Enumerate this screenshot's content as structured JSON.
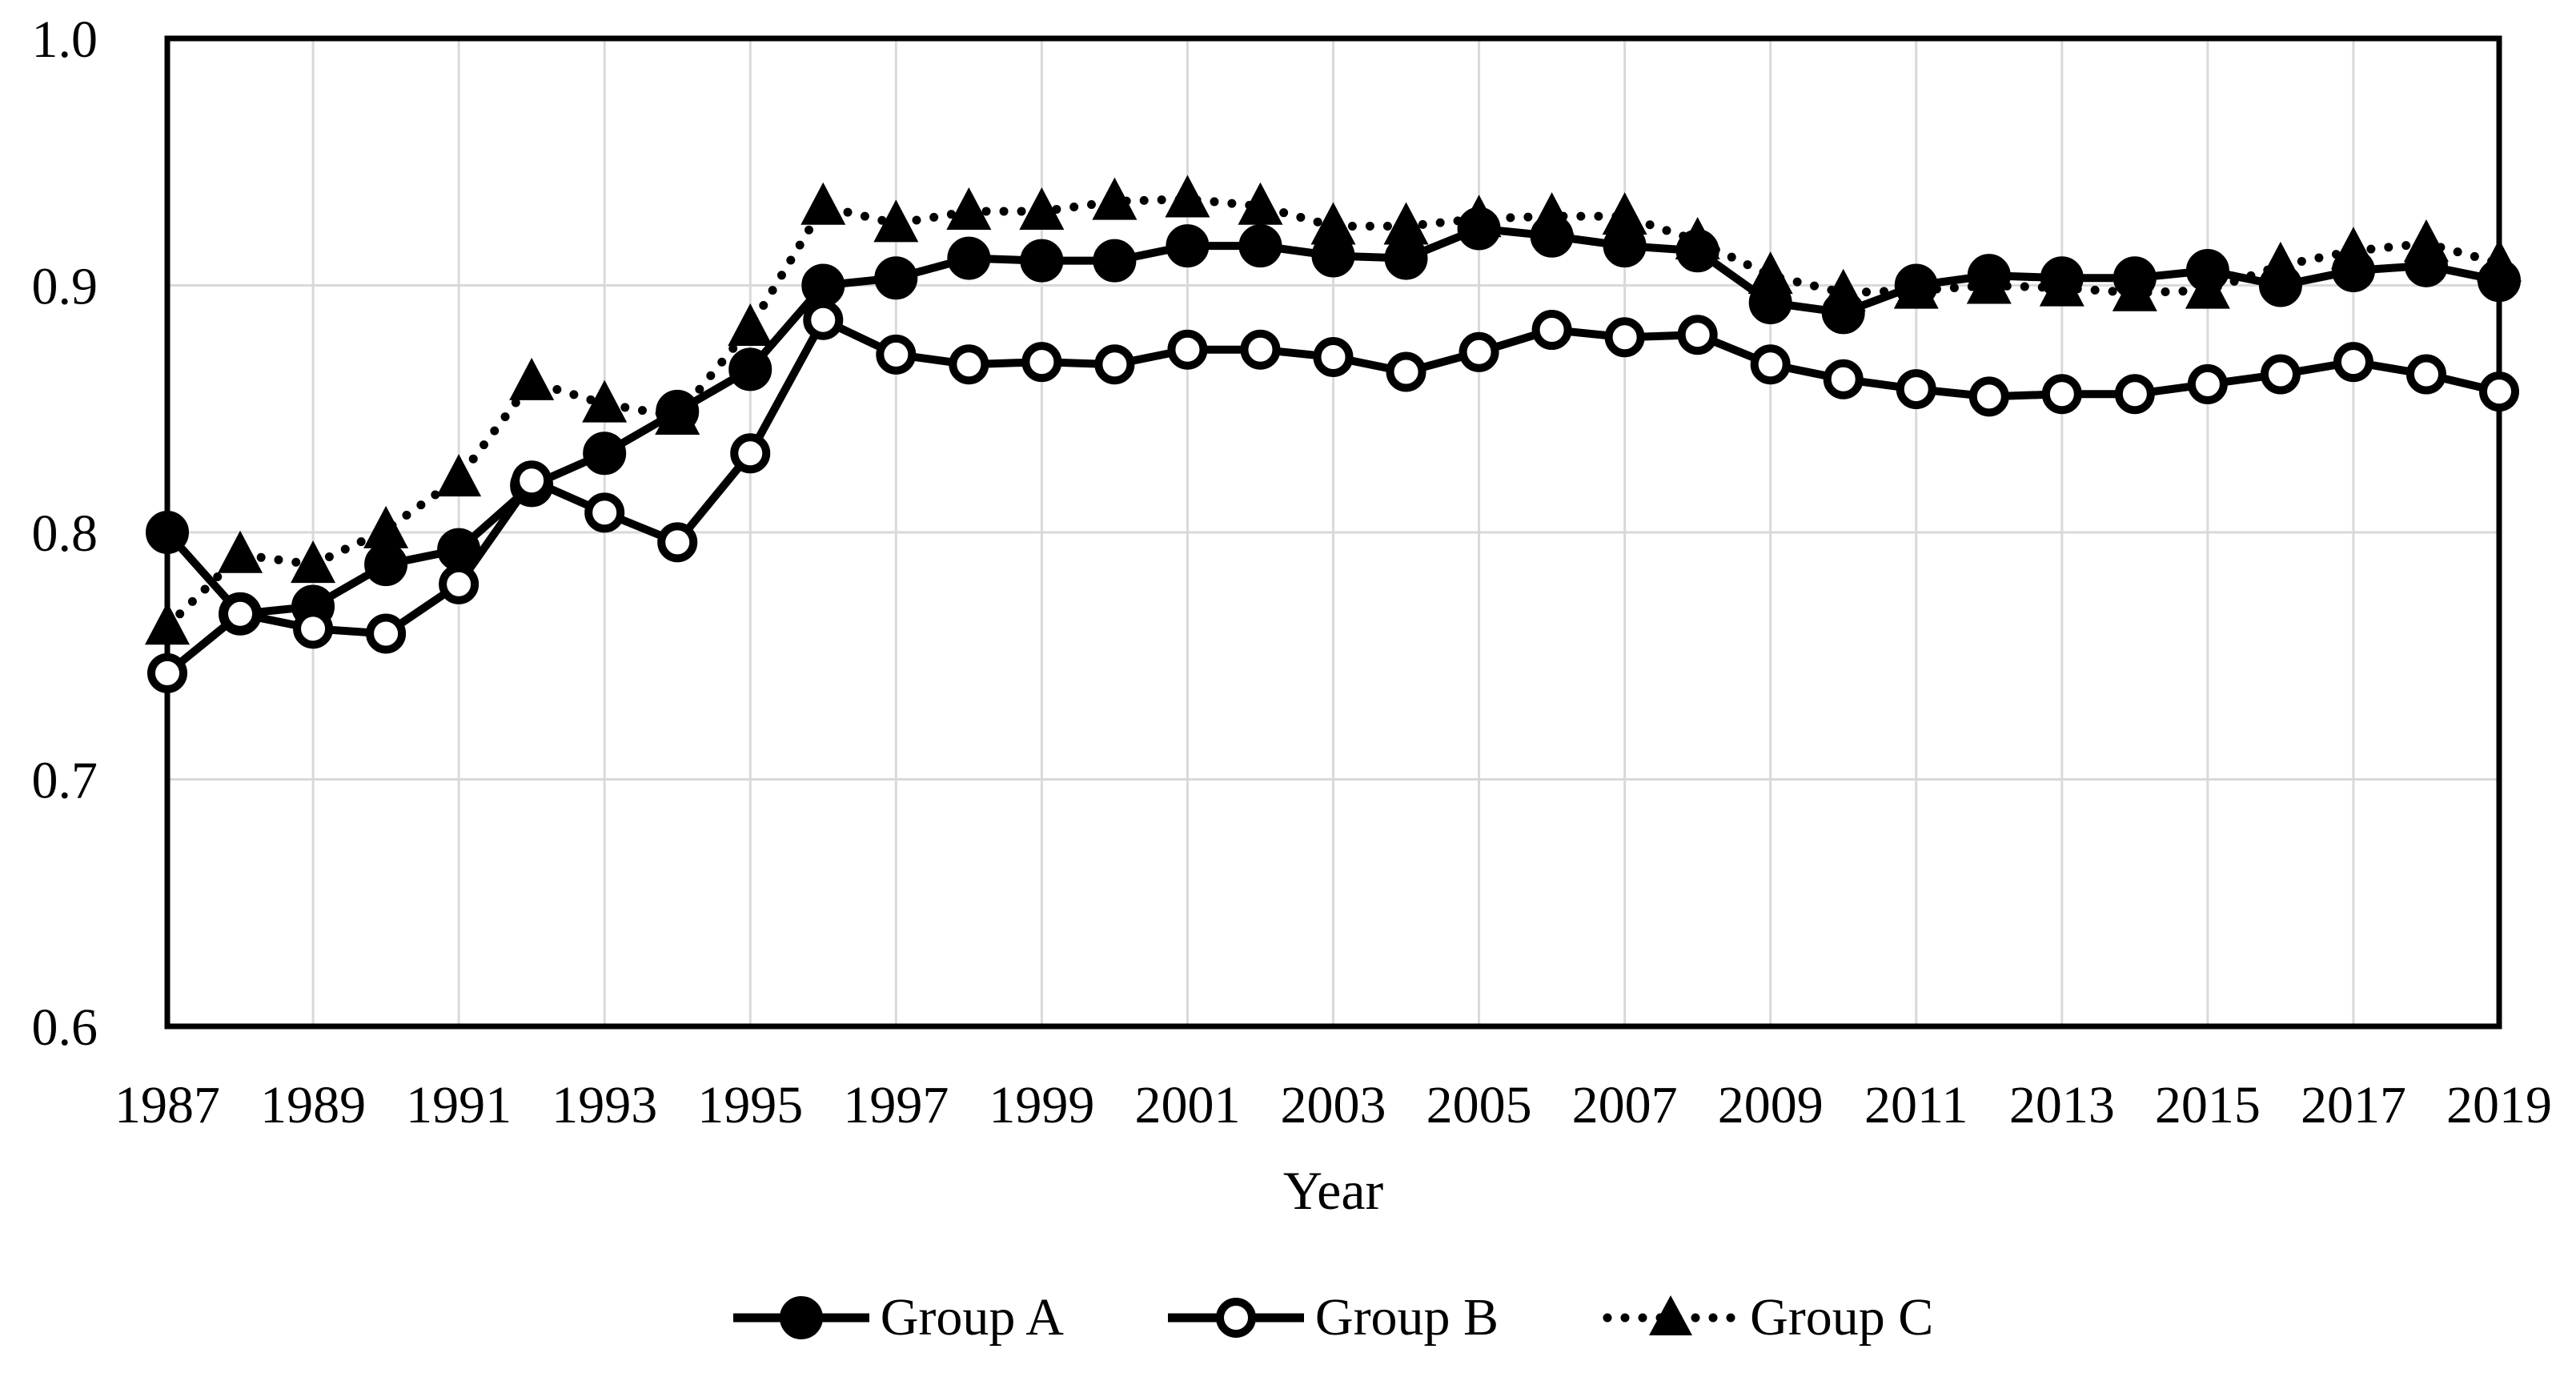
{
  "figure": {
    "background_color": "#ffffff",
    "series_color": "#000000",
    "grid_color": "#d9d9d9",
    "text_color": "#000000"
  },
  "y_axis": {
    "tick_labels": [
      "1.0",
      "0.9",
      "0.8",
      "0.7",
      "0.6"
    ]
  },
  "x_axis": {
    "title": "Year",
    "tick_labels": [
      "1987",
      "1989",
      "1991",
      "1993",
      "1995",
      "1997",
      "1999",
      "2001",
      "2003",
      "2005",
      "2007",
      "2009",
      "2011",
      "2013",
      "2015",
      "2017",
      "2019"
    ]
  },
  "legend": {
    "items": [
      {
        "label": "Group A",
        "marker": "filled-circle",
        "line_style": "solid"
      },
      {
        "label": "Group B",
        "marker": "open-circle",
        "line_style": "solid"
      },
      {
        "label": "Group C",
        "marker": "filled-triangle",
        "line_style": "dotted"
      }
    ]
  },
  "chart_data": {
    "type": "line",
    "title": "",
    "xlabel": "Year",
    "ylabel": "",
    "ylim": [
      0.6,
      1.0
    ],
    "ytick_step": 0.1,
    "grid": true,
    "legend_position": "bottom",
    "x": [
      1987,
      1988,
      1989,
      1990,
      1991,
      1992,
      1993,
      1994,
      1995,
      1996,
      1997,
      1998,
      1999,
      2000,
      2001,
      2002,
      2003,
      2004,
      2005,
      2006,
      2007,
      2008,
      2009,
      2010,
      2011,
      2012,
      2013,
      2014,
      2015,
      2016,
      2017,
      2018,
      2019
    ],
    "series": [
      {
        "name": "Group A",
        "marker": "filled-circle",
        "line_style": "solid",
        "values": [
          0.8,
          0.767,
          0.77,
          0.787,
          0.793,
          0.819,
          0.832,
          0.849,
          0.866,
          0.9,
          0.903,
          0.911,
          0.91,
          0.91,
          0.916,
          0.916,
          0.912,
          0.911,
          0.923,
          0.92,
          0.916,
          0.914,
          0.893,
          0.889,
          0.9,
          0.904,
          0.903,
          0.903,
          0.906,
          0.9,
          0.906,
          0.908,
          0.902
        ]
      },
      {
        "name": "Group B",
        "marker": "open-circle",
        "line_style": "solid",
        "values": [
          0.743,
          0.767,
          0.761,
          0.759,
          0.779,
          0.821,
          0.808,
          0.796,
          0.832,
          0.886,
          0.872,
          0.868,
          0.869,
          0.868,
          0.874,
          0.874,
          0.871,
          0.865,
          0.873,
          0.882,
          0.879,
          0.88,
          0.868,
          0.862,
          0.858,
          0.855,
          0.856,
          0.856,
          0.86,
          0.864,
          0.869,
          0.864,
          0.857
        ]
      },
      {
        "name": "Group C",
        "marker": "filled-triangle",
        "line_style": "dotted",
        "values": [
          0.762,
          0.791,
          0.787,
          0.801,
          0.822,
          0.861,
          0.852,
          0.847,
          0.883,
          0.932,
          0.925,
          0.93,
          0.93,
          0.934,
          0.935,
          0.932,
          0.924,
          0.924,
          0.927,
          0.928,
          0.928,
          0.918,
          0.904,
          0.897,
          0.898,
          0.9,
          0.899,
          0.897,
          0.898,
          0.908,
          0.914,
          0.917,
          0.909
        ]
      }
    ]
  }
}
